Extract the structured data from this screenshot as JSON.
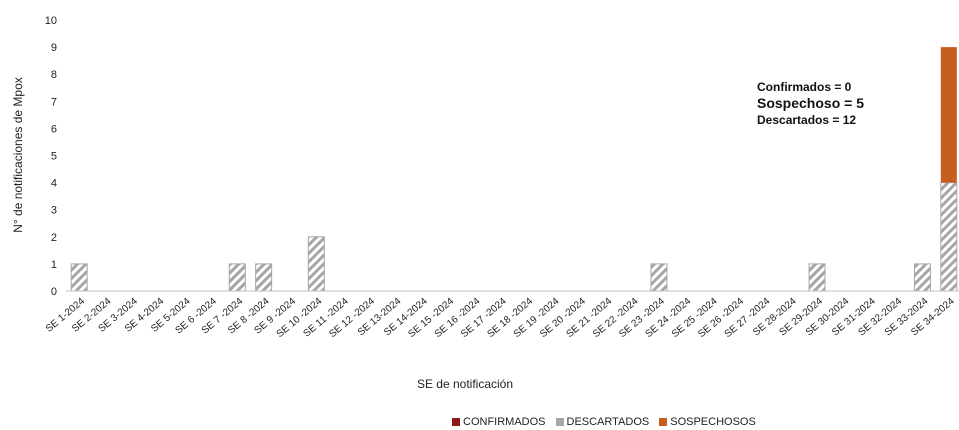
{
  "chart_data": {
    "type": "bar",
    "stacked": true,
    "xlabel": "SE de notificación",
    "ylabel": "N° de notificaciones de Mpox",
    "ylim": [
      0,
      10
    ],
    "yticks": [
      0,
      1,
      2,
      3,
      4,
      5,
      6,
      7,
      8,
      9,
      10
    ],
    "categories": [
      "SE 1-2024",
      "SE 2-2024",
      "SE 3-2024",
      "SE 4-2024",
      "SE 5-2024",
      "SE 6 -2024",
      "SE 7 -2024",
      "SE 8 -2024",
      "SE 9 -2024",
      "SE 10 -2024",
      "SE 11 -2024",
      "SE 12 -2024",
      "SE 13-2024",
      "SE 14-2024",
      "SE 15 -2024",
      "SE 16 -2024",
      "SE 17 -2024",
      "SE 18 -2024",
      "SE 19 -2024",
      "SE 20 -2024",
      "SE 21 -2024",
      "SE 22 -2024",
      "SE 23 -2024",
      "SE 24 -2024",
      "SE 25 -2024",
      "SE 26 -2024",
      "SE 27 -2024",
      "SE 28-2024",
      "SE 29-2024",
      "SE 30-2024",
      "SE 31-2024",
      "SE 32-2024",
      "SE 33-2024",
      "SE 34-2024"
    ],
    "series": [
      {
        "name": "CONFIRMADOS",
        "color": "#8b1a1a",
        "pattern": "solid",
        "values": [
          0,
          0,
          0,
          0,
          0,
          0,
          0,
          0,
          0,
          0,
          0,
          0,
          0,
          0,
          0,
          0,
          0,
          0,
          0,
          0,
          0,
          0,
          0,
          0,
          0,
          0,
          0,
          0,
          0,
          0,
          0,
          0,
          0,
          0
        ]
      },
      {
        "name": "DESCARTADOS",
        "color": "#a6a6a6",
        "pattern": "hatch",
        "values": [
          1,
          0,
          0,
          0,
          0,
          0,
          1,
          1,
          0,
          2,
          0,
          0,
          0,
          0,
          0,
          0,
          0,
          0,
          0,
          0,
          0,
          0,
          1,
          0,
          0,
          0,
          0,
          0,
          1,
          0,
          0,
          0,
          1,
          4
        ]
      },
      {
        "name": "SOSPECHOSOS",
        "color": "#c65d1e",
        "pattern": "solid",
        "values": [
          0,
          0,
          0,
          0,
          0,
          0,
          0,
          0,
          0,
          0,
          0,
          0,
          0,
          0,
          0,
          0,
          0,
          0,
          0,
          0,
          0,
          0,
          0,
          0,
          0,
          0,
          0,
          0,
          0,
          0,
          0,
          0,
          0,
          5
        ]
      }
    ],
    "annotations": [
      "Confirmados = 0",
      "Sospechoso = 5",
      "Descartados = 12"
    ],
    "legend_position": "bottom",
    "grid": false
  }
}
